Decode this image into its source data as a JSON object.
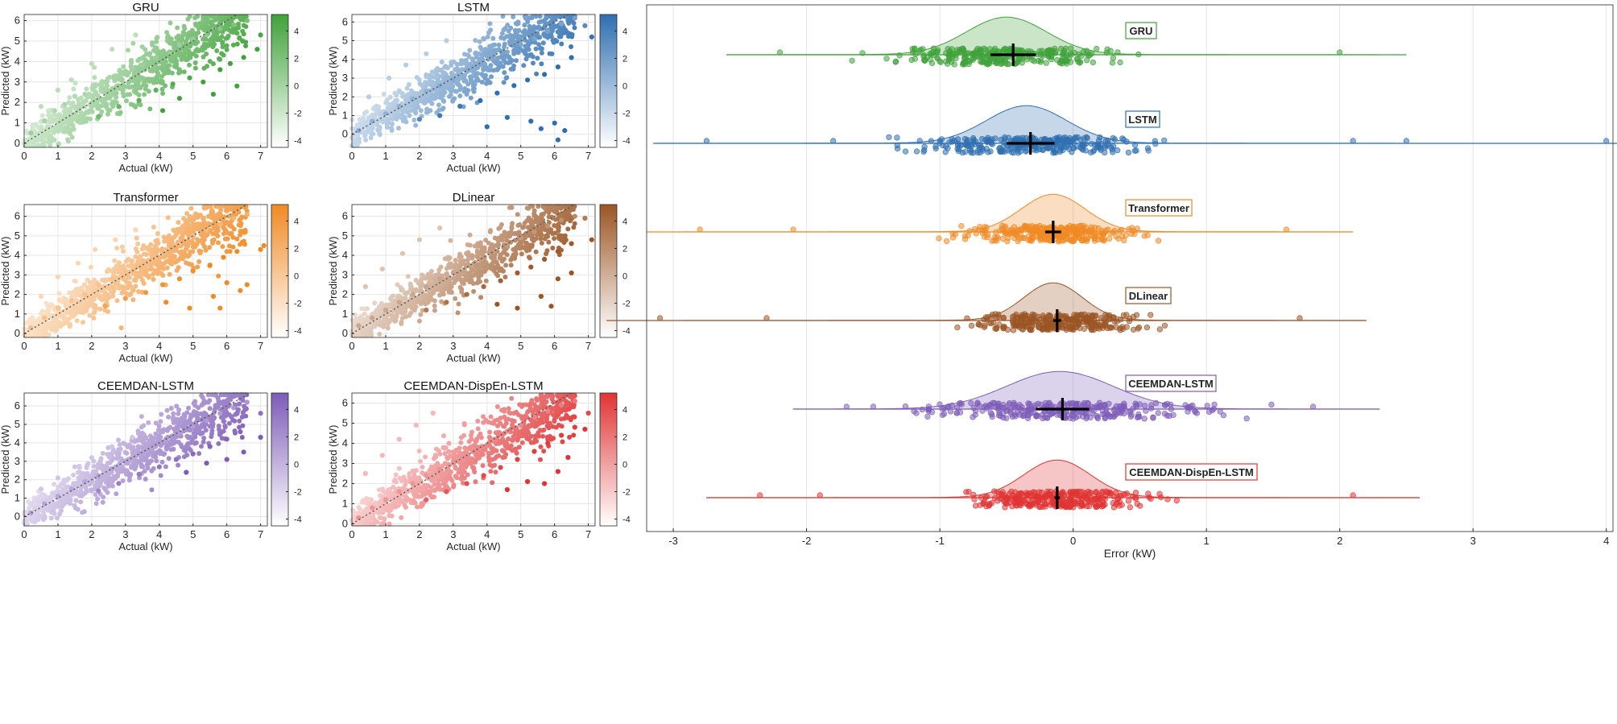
{
  "chart_data": [
    {
      "type": "scatter",
      "title": "GRU",
      "xlabel": "Actual (kW)",
      "ylabel": "Predicted (kW)",
      "xlim": [
        0,
        7.2
      ],
      "ylim": [
        -0.2,
        6.3
      ],
      "xticks": [
        0,
        1,
        2,
        3,
        4,
        5,
        6,
        7
      ],
      "yticks": [
        0,
        1,
        2,
        3,
        4,
        5,
        6
      ],
      "cmap_color": "#3fa23a",
      "colorbar": {
        "range": [
          -4.5,
          5.2
        ],
        "ticks": [
          -4,
          -2,
          0,
          2,
          4
        ]
      },
      "reference_line": "y = x",
      "points": [
        [
          0.2,
          0.5
        ],
        [
          0.6,
          1.1
        ],
        [
          0.9,
          1.6
        ],
        [
          1.2,
          1.9
        ],
        [
          1.5,
          2.3
        ],
        [
          1.8,
          2.4
        ],
        [
          2.1,
          2.8
        ],
        [
          2.4,
          3.0
        ],
        [
          2.8,
          3.3
        ],
        [
          3.2,
          3.6
        ],
        [
          3.5,
          3.8
        ],
        [
          3.9,
          4.2
        ],
        [
          4.3,
          4.4
        ],
        [
          4.6,
          4.8
        ],
        [
          5.0,
          5.1
        ],
        [
          5.4,
          5.3
        ],
        [
          5.8,
          5.6
        ],
        [
          6.2,
          5.8
        ],
        [
          6.6,
          6.0
        ],
        [
          0.5,
          1.8
        ],
        [
          1.0,
          2.6
        ],
        [
          1.4,
          3.1
        ],
        [
          2.0,
          3.9
        ],
        [
          2.6,
          4.6
        ],
        [
          3.3,
          5.3
        ],
        [
          2.2,
          1.3
        ],
        [
          2.8,
          1.8
        ],
        [
          3.4,
          2.1
        ],
        [
          3.9,
          2.6
        ],
        [
          4.4,
          2.9
        ],
        [
          4.9,
          3.2
        ],
        [
          5.3,
          3.0
        ],
        [
          5.8,
          3.6
        ],
        [
          6.1,
          3.9
        ],
        [
          6.5,
          4.2
        ],
        [
          4.1,
          1.6
        ],
        [
          4.6,
          2.2
        ],
        [
          5.6,
          2.4
        ],
        [
          6.3,
          2.8
        ],
        [
          6.9,
          4.6
        ],
        [
          7.0,
          5.3
        ]
      ]
    },
    {
      "type": "scatter",
      "title": "LSTM",
      "xlabel": "Actual (kW)",
      "ylabel": "Predicted (kW)",
      "xlim": [
        0,
        7.2
      ],
      "ylim": [
        -0.7,
        6.4
      ],
      "xticks": [
        0,
        1,
        2,
        3,
        4,
        5,
        6,
        7
      ],
      "yticks": [
        0,
        1,
        2,
        3,
        4,
        5,
        6
      ],
      "cmap_color": "#2f6fb0",
      "colorbar": {
        "range": [
          -4.5,
          5.2
        ],
        "ticks": [
          -4,
          -2,
          0,
          2,
          4
        ]
      },
      "reference_line": "y = x",
      "points": [
        [
          0.2,
          0.2
        ],
        [
          0.6,
          0.7
        ],
        [
          1.0,
          1.1
        ],
        [
          1.4,
          1.5
        ],
        [
          1.8,
          1.9
        ],
        [
          2.2,
          2.3
        ],
        [
          2.6,
          2.6
        ],
        [
          3.0,
          2.9
        ],
        [
          3.4,
          3.4
        ],
        [
          3.8,
          3.7
        ],
        [
          4.2,
          4.1
        ],
        [
          4.6,
          4.4
        ],
        [
          5.0,
          4.8
        ],
        [
          5.4,
          5.1
        ],
        [
          5.8,
          5.5
        ],
        [
          6.2,
          5.9
        ],
        [
          6.6,
          6.2
        ],
        [
          0.5,
          2.0
        ],
        [
          1.1,
          3.0
        ],
        [
          1.6,
          3.7
        ],
        [
          2.2,
          4.3
        ],
        [
          2.8,
          5.0
        ],
        [
          2.0,
          0.8
        ],
        [
          2.6,
          1.0
        ],
        [
          3.2,
          1.5
        ],
        [
          3.8,
          1.8
        ],
        [
          4.3,
          2.2
        ],
        [
          4.8,
          2.6
        ],
        [
          5.2,
          2.9
        ],
        [
          5.7,
          3.2
        ],
        [
          6.1,
          3.6
        ],
        [
          6.5,
          4.1
        ],
        [
          4.0,
          0.4
        ],
        [
          4.6,
          0.9
        ],
        [
          5.3,
          0.7
        ],
        [
          5.6,
          0.3
        ],
        [
          6.0,
          0.6
        ],
        [
          6.1,
          -0.3
        ],
        [
          6.3,
          0.2
        ],
        [
          6.9,
          5.8
        ],
        [
          7.1,
          5.2
        ]
      ]
    },
    {
      "type": "scatter",
      "title": "Transformer",
      "xlabel": "Actual (kW)",
      "ylabel": "Predicted (kW)",
      "xlim": [
        0,
        7.2
      ],
      "ylim": [
        -0.2,
        6.6
      ],
      "xticks": [
        0,
        1,
        2,
        3,
        4,
        5,
        6,
        7
      ],
      "yticks": [
        0,
        1,
        2,
        3,
        4,
        5,
        6
      ],
      "cmap_color": "#f08a24",
      "colorbar": {
        "range": [
          -4.5,
          5.2
        ],
        "ticks": [
          -4,
          -2,
          0,
          2,
          4
        ]
      },
      "reference_line": "y = x",
      "points": [
        [
          0.2,
          0.3
        ],
        [
          0.6,
          0.8
        ],
        [
          1.0,
          1.3
        ],
        [
          1.4,
          1.7
        ],
        [
          1.8,
          2.0
        ],
        [
          2.2,
          2.5
        ],
        [
          2.6,
          2.8
        ],
        [
          3.0,
          3.2
        ],
        [
          3.4,
          3.5
        ],
        [
          3.8,
          3.8
        ],
        [
          4.2,
          4.3
        ],
        [
          4.6,
          4.6
        ],
        [
          5.0,
          5.0
        ],
        [
          5.4,
          5.3
        ],
        [
          5.8,
          5.6
        ],
        [
          6.2,
          5.9
        ],
        [
          6.6,
          6.1
        ],
        [
          0.5,
          1.9
        ],
        [
          1.0,
          2.9
        ],
        [
          1.6,
          3.6
        ],
        [
          2.1,
          4.3
        ],
        [
          2.7,
          4.8
        ],
        [
          3.3,
          5.3
        ],
        [
          2.4,
          1.4
        ],
        [
          3.0,
          1.8
        ],
        [
          3.6,
          2.1
        ],
        [
          4.1,
          2.5
        ],
        [
          4.6,
          2.8
        ],
        [
          5.0,
          3.2
        ],
        [
          5.5,
          3.5
        ],
        [
          5.9,
          3.9
        ],
        [
          6.3,
          4.2
        ],
        [
          4.2,
          1.6
        ],
        [
          4.9,
          1.3
        ],
        [
          5.6,
          1.9
        ],
        [
          5.8,
          1.3
        ],
        [
          6.0,
          2.6
        ],
        [
          6.4,
          2.2
        ],
        [
          6.6,
          2.5
        ],
        [
          7.0,
          4.3
        ],
        [
          7.1,
          4.5
        ]
      ]
    },
    {
      "type": "scatter",
      "title": "DLinear",
      "xlabel": "Actual (kW)",
      "ylabel": "Predicted (kW)",
      "xlim": [
        0,
        7.2
      ],
      "ylim": [
        -0.2,
        6.6
      ],
      "xticks": [
        0,
        1,
        2,
        3,
        4,
        5,
        6,
        7
      ],
      "yticks": [
        0,
        1,
        2,
        3,
        4,
        5,
        6
      ],
      "cmap_color": "#9b5524",
      "colorbar": {
        "range": [
          -4.5,
          5.2
        ],
        "ticks": [
          -4,
          -2,
          0,
          2,
          4
        ]
      },
      "reference_line": "y = x",
      "points": [
        [
          0.2,
          0.4
        ],
        [
          0.6,
          0.8
        ],
        [
          1.0,
          1.2
        ],
        [
          1.4,
          1.6
        ],
        [
          1.8,
          2.0
        ],
        [
          2.2,
          2.4
        ],
        [
          2.6,
          2.8
        ],
        [
          3.0,
          3.1
        ],
        [
          3.4,
          3.5
        ],
        [
          3.8,
          3.8
        ],
        [
          4.2,
          4.2
        ],
        [
          4.6,
          4.5
        ],
        [
          5.0,
          4.9
        ],
        [
          5.4,
          5.2
        ],
        [
          5.8,
          5.5
        ],
        [
          6.2,
          5.8
        ],
        [
          6.6,
          6.0
        ],
        [
          0.4,
          2.4
        ],
        [
          0.9,
          3.3
        ],
        [
          1.5,
          4.1
        ],
        [
          2.0,
          4.8
        ],
        [
          2.6,
          5.4
        ],
        [
          2.2,
          1.2
        ],
        [
          2.8,
          1.6
        ],
        [
          3.4,
          2.0
        ],
        [
          3.9,
          2.4
        ],
        [
          4.4,
          2.7
        ],
        [
          4.9,
          3.1
        ],
        [
          5.3,
          3.4
        ],
        [
          5.7,
          3.8
        ],
        [
          6.1,
          4.2
        ],
        [
          6.5,
          4.6
        ],
        [
          4.3,
          1.5
        ],
        [
          4.9,
          1.3
        ],
        [
          5.6,
          1.9
        ],
        [
          5.9,
          1.4
        ],
        [
          6.1,
          2.8
        ],
        [
          6.5,
          3.1
        ],
        [
          6.9,
          5.9
        ],
        [
          7.1,
          4.8
        ]
      ]
    },
    {
      "type": "scatter",
      "title": "CEEMDAN-LSTM",
      "xlabel": "Actual (kW)",
      "ylabel": "Predicted (kW)",
      "xlim": [
        0,
        7.2
      ],
      "ylim": [
        -0.5,
        6.7
      ],
      "xticks": [
        0,
        1,
        2,
        3,
        4,
        5,
        6,
        7
      ],
      "yticks": [
        0,
        1,
        2,
        3,
        4,
        5,
        6
      ],
      "cmap_color": "#7d5cb8",
      "colorbar": {
        "range": [
          -4.5,
          5.2
        ],
        "ticks": [
          -4,
          -2,
          0,
          2,
          4
        ]
      },
      "reference_line": "y = x",
      "points": [
        [
          0.2,
          0.2
        ],
        [
          0.6,
          0.7
        ],
        [
          1.0,
          1.1
        ],
        [
          1.4,
          1.5
        ],
        [
          1.8,
          1.9
        ],
        [
          2.2,
          2.2
        ],
        [
          2.6,
          2.6
        ],
        [
          3.0,
          3.0
        ],
        [
          3.4,
          3.4
        ],
        [
          3.8,
          3.8
        ],
        [
          4.2,
          4.1
        ],
        [
          4.6,
          4.5
        ],
        [
          5.0,
          4.9
        ],
        [
          5.4,
          5.2
        ],
        [
          5.8,
          5.6
        ],
        [
          6.2,
          5.9
        ],
        [
          6.6,
          6.2
        ],
        [
          0.5,
          1.5
        ],
        [
          1.0,
          2.1
        ],
        [
          1.5,
          2.7
        ],
        [
          2.0,
          3.2
        ],
        [
          2.6,
          3.8
        ],
        [
          3.2,
          4.3
        ],
        [
          2.2,
          1.4
        ],
        [
          2.8,
          1.8
        ],
        [
          3.4,
          2.3
        ],
        [
          4.0,
          2.7
        ],
        [
          4.5,
          3.1
        ],
        [
          5.0,
          3.4
        ],
        [
          5.5,
          3.8
        ],
        [
          6.0,
          4.2
        ],
        [
          6.4,
          4.6
        ],
        [
          4.8,
          2.4
        ],
        [
          5.4,
          2.9
        ],
        [
          6.0,
          3.1
        ],
        [
          6.5,
          3.5
        ],
        [
          7.0,
          4.3
        ],
        [
          7.0,
          5.6
        ]
      ]
    },
    {
      "type": "scatter",
      "title": "CEEMDAN-DispEn-LSTM",
      "xlabel": "Actual (kW)",
      "ylabel": "Predicted (kW)",
      "xlim": [
        0,
        7.2
      ],
      "ylim": [
        -0.1,
        6.5
      ],
      "xticks": [
        0,
        1,
        2,
        3,
        4,
        5,
        6,
        7
      ],
      "yticks": [
        0,
        1,
        2,
        3,
        4,
        5,
        6
      ],
      "cmap_color": "#e03434",
      "colorbar": {
        "range": [
          -4.5,
          5.2
        ],
        "ticks": [
          -4,
          -2,
          0,
          2,
          4
        ]
      },
      "reference_line": "y = x",
      "points": [
        [
          0.2,
          0.3
        ],
        [
          0.6,
          0.8
        ],
        [
          1.0,
          1.2
        ],
        [
          1.4,
          1.6
        ],
        [
          1.8,
          2.0
        ],
        [
          2.2,
          2.4
        ],
        [
          2.6,
          2.7
        ],
        [
          3.0,
          3.1
        ],
        [
          3.4,
          3.5
        ],
        [
          3.8,
          3.8
        ],
        [
          4.2,
          4.2
        ],
        [
          4.6,
          4.6
        ],
        [
          5.0,
          4.9
        ],
        [
          5.4,
          5.3
        ],
        [
          5.8,
          5.6
        ],
        [
          6.2,
          5.9
        ],
        [
          6.6,
          6.1
        ],
        [
          0.4,
          2.5
        ],
        [
          0.9,
          3.4
        ],
        [
          1.4,
          4.2
        ],
        [
          1.9,
          4.9
        ],
        [
          2.4,
          5.5
        ],
        [
          2.2,
          1.2
        ],
        [
          2.8,
          1.6
        ],
        [
          3.4,
          2.0
        ],
        [
          3.9,
          2.4
        ],
        [
          4.4,
          2.8
        ],
        [
          4.9,
          3.2
        ],
        [
          5.4,
          3.6
        ],
        [
          5.8,
          4.0
        ],
        [
          6.2,
          4.4
        ],
        [
          6.6,
          4.8
        ],
        [
          4.6,
          1.7
        ],
        [
          5.2,
          2.1
        ],
        [
          5.7,
          2.0
        ],
        [
          6.1,
          2.6
        ],
        [
          6.4,
          3.3
        ],
        [
          6.9,
          4.7
        ],
        [
          7.0,
          5.5
        ]
      ]
    },
    {
      "type": "raincloud",
      "xlabel": "Error (kW)",
      "xlim": [
        -3.2,
        4.05
      ],
      "xticks": [
        -3,
        -2,
        -1,
        0,
        1,
        2,
        3,
        4
      ],
      "grid": "vertical",
      "series": [
        {
          "name": "GRU",
          "color": "#3fa23a",
          "mean": -0.45,
          "std_err_bar": 0.17,
          "density_peak": -0.5,
          "density_sd": 0.3,
          "whisker": [
            -2.2,
            2.0
          ],
          "outliers": [
            -2.2,
            2.0
          ]
        },
        {
          "name": "LSTM",
          "color": "#2f6fb0",
          "mean": -0.32,
          "std_err_bar": 0.18,
          "density_peak": -0.35,
          "density_sd": 0.3,
          "whisker": [
            -2.75,
            4.0
          ],
          "outliers": [
            -2.75,
            -1.8,
            2.1,
            2.5,
            4.0
          ]
        },
        {
          "name": "Transformer",
          "color": "#f08a24",
          "mean": -0.15,
          "std_err_bar": 0.06,
          "density_peak": -0.15,
          "density_sd": 0.24,
          "whisker": [
            -2.8,
            1.6
          ],
          "outliers": [
            -2.8,
            -2.1,
            1.6
          ]
        },
        {
          "name": "DLinear",
          "color": "#9b5524",
          "mean": -0.12,
          "std_err_bar": 0.03,
          "density_peak": -0.15,
          "density_sd": 0.22,
          "whisker": [
            -3.1,
            1.7
          ],
          "outliers": [
            -3.1,
            -2.3,
            1.7
          ]
        },
        {
          "name": "CEEMDAN-LSTM",
          "color": "#7d5cb8",
          "mean": -0.08,
          "std_err_bar": 0.2,
          "density_peak": -0.1,
          "density_sd": 0.4,
          "whisker": [
            -1.7,
            1.8
          ],
          "outliers": [
            -1.7,
            -1.5,
            1.8
          ]
        },
        {
          "name": "CEEMDAN-DispEn-LSTM",
          "color": "#e03434",
          "mean": -0.12,
          "std_err_bar": 0.02,
          "density_peak": -0.12,
          "density_sd": 0.25,
          "whisker": [
            -2.35,
            2.1
          ],
          "outliers": [
            -2.35,
            -1.9,
            2.1
          ]
        }
      ]
    }
  ]
}
